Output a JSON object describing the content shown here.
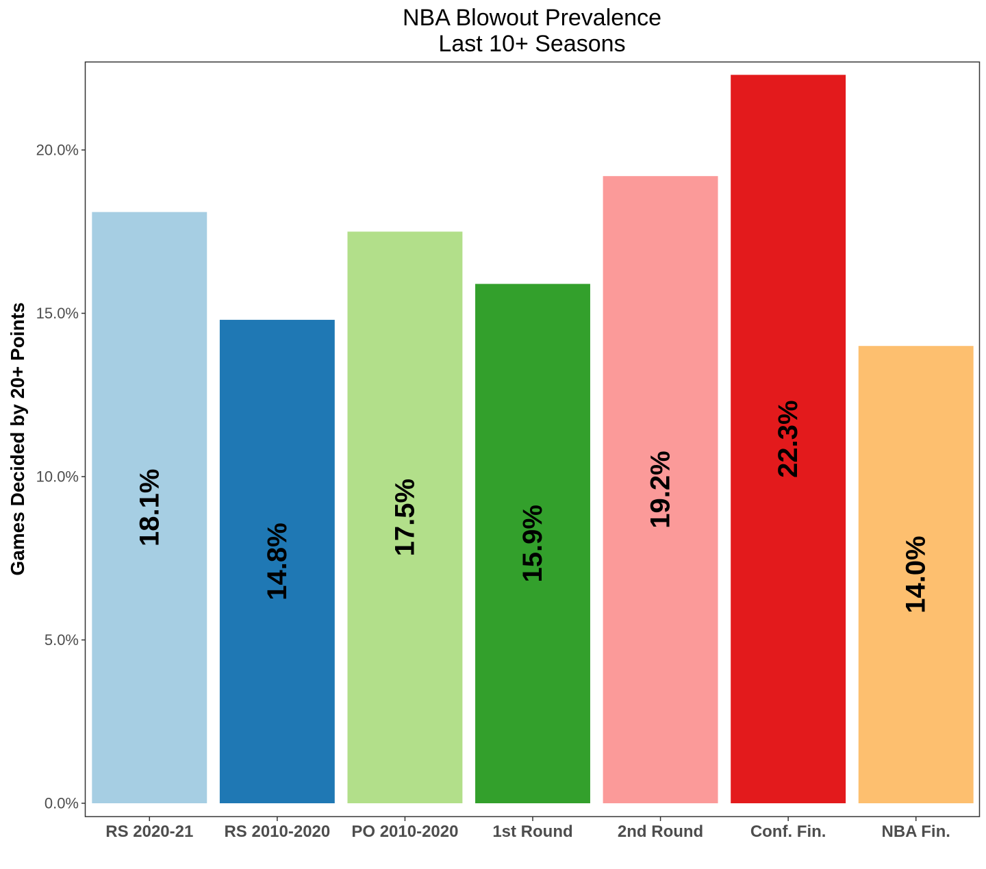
{
  "chart_data": {
    "type": "bar",
    "title": [
      "NBA Blowout Prevalence",
      "Last 10+ Seasons"
    ],
    "xlabel": "",
    "ylabel": "Games Decided by 20+ Points",
    "categories": [
      "RS 2020-21",
      "RS 2010-2020",
      "PO 2010-2020",
      "1st Round",
      "2nd Round",
      "Conf. Fin.",
      "NBA Fin."
    ],
    "values": [
      18.1,
      14.8,
      17.5,
      15.9,
      19.2,
      22.3,
      14.0
    ],
    "labels": [
      "18.1%",
      "14.8%",
      "17.5%",
      "15.9%",
      "19.2%",
      "22.3%",
      "14.0%"
    ],
    "colors": [
      "#a6cee3",
      "#1f78b4",
      "#b2df8a",
      "#33a02c",
      "#fb9a99",
      "#e31a1c",
      "#fdbf6f"
    ],
    "ylim": [
      0,
      22.6
    ],
    "yticks": [
      0,
      5,
      10,
      15,
      20
    ],
    "ytick_labels": [
      "0.0%",
      "5.0%",
      "10.0%",
      "15.0%",
      "20.0%"
    ],
    "grid": false,
    "legend": "none"
  }
}
